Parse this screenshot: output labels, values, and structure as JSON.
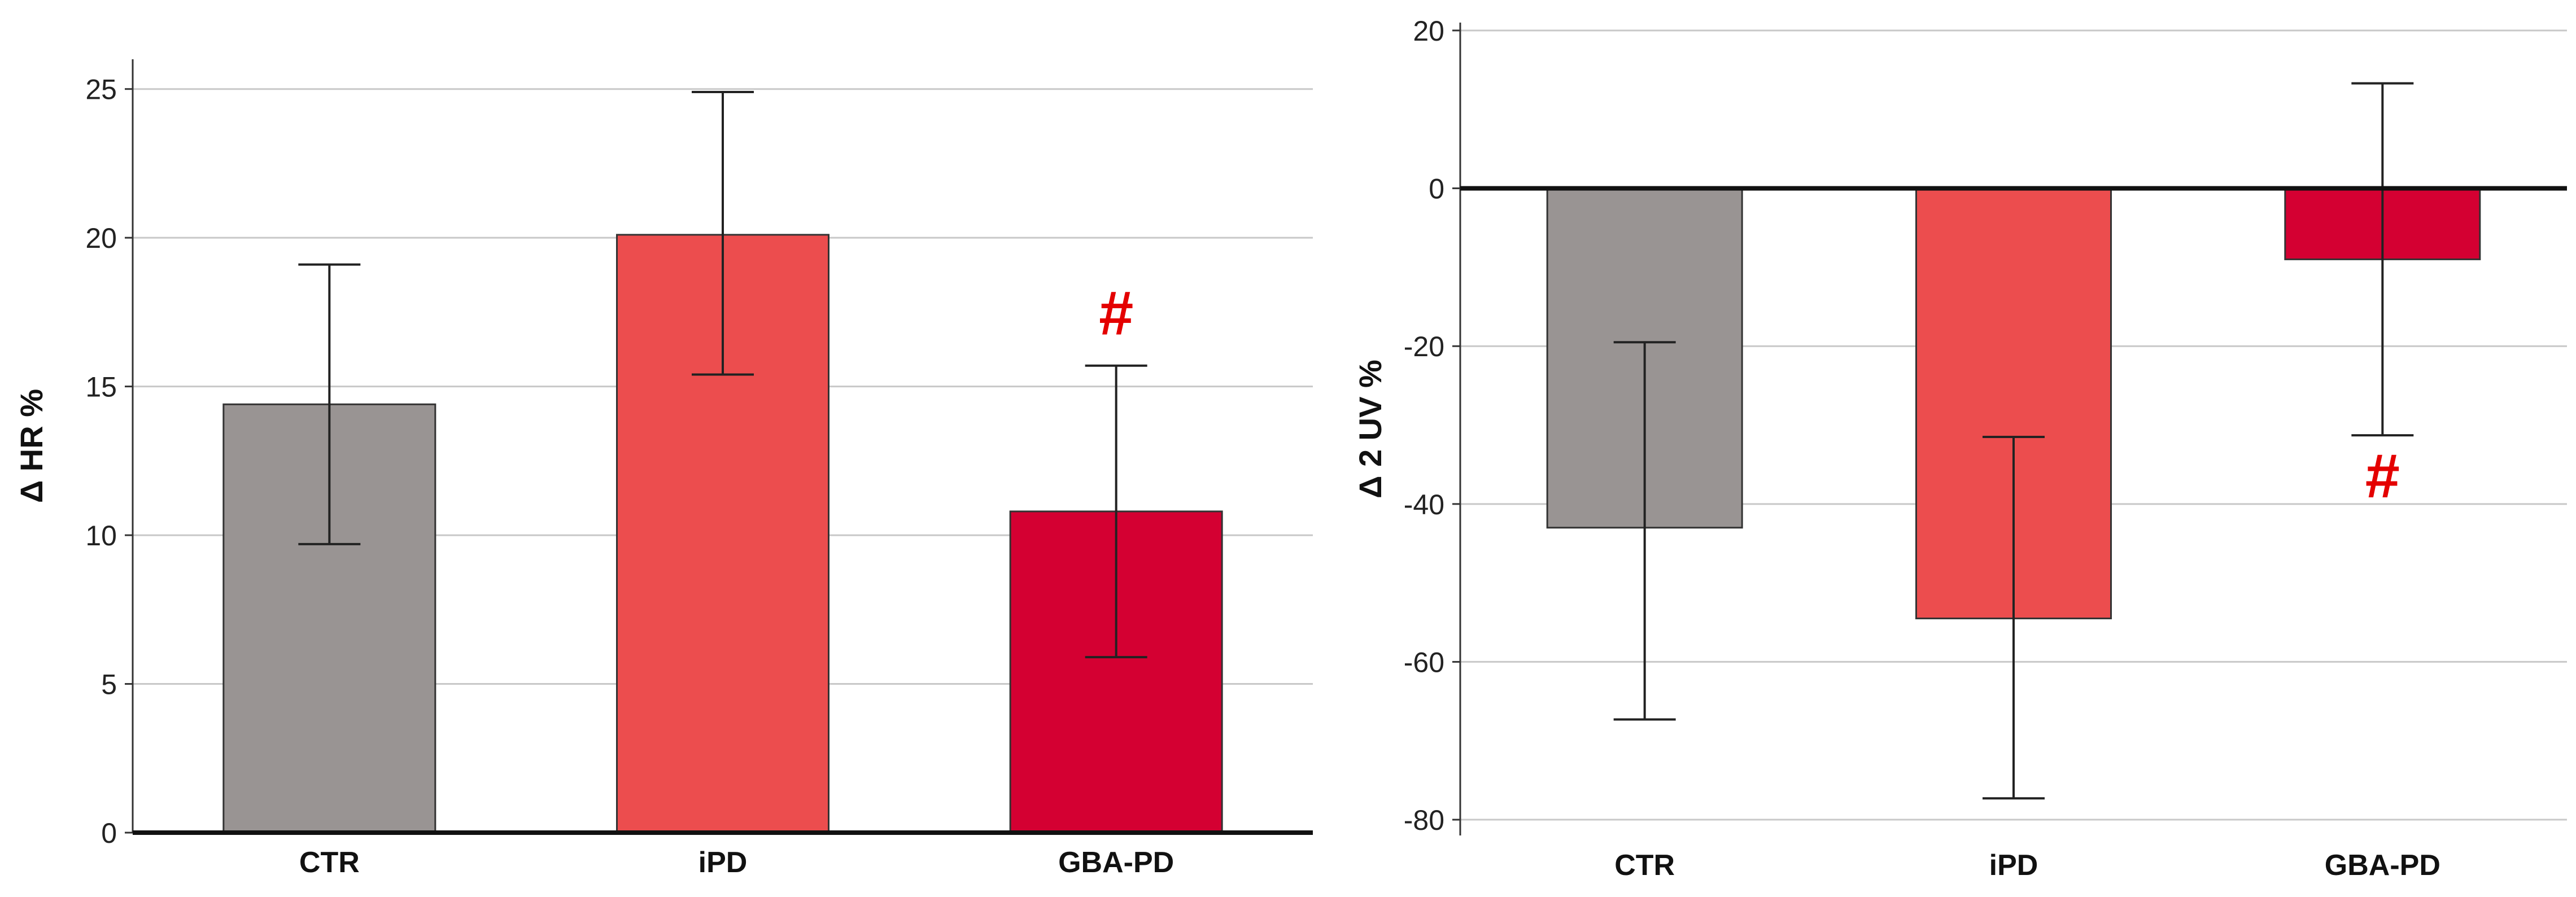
{
  "colors": {
    "CTR": "#999493",
    "iPD": "#ec4d4e",
    "GBA-PD": "#d40032",
    "significance": "#e40000"
  },
  "chart_data": [
    {
      "type": "bar",
      "categories": [
        "CTR",
        "iPD",
        "GBA-PD"
      ],
      "values": [
        14.4,
        20.1,
        10.8
      ],
      "error_bars": {
        "upper": [
          19.1,
          24.9,
          15.7
        ],
        "lower": [
          9.7,
          15.4,
          5.9
        ]
      },
      "significance": [
        "",
        "",
        "#"
      ],
      "title": "",
      "xlabel": "",
      "ylabel": "Δ HR %",
      "ylim": [
        0,
        26
      ],
      "yticks": [
        0,
        5,
        10,
        15,
        20,
        25
      ],
      "grid": true,
      "legend": "none"
    },
    {
      "type": "bar",
      "categories": [
        "CTR",
        "iPD",
        "GBA-PD"
      ],
      "values": [
        -43,
        -54.5,
        -9
      ],
      "error_bars": {
        "upper": [
          -19.5,
          -31.5,
          13.3
        ],
        "lower": [
          -67.3,
          -77.3,
          -31.3
        ]
      },
      "significance": [
        "",
        "",
        "#"
      ],
      "title": "",
      "xlabel": "",
      "ylabel": "Δ 2 UV %",
      "ylim": [
        -82,
        21
      ],
      "yticks": [
        -80,
        -60,
        -40,
        -20,
        0,
        20
      ],
      "grid": true,
      "legend": "none"
    }
  ]
}
